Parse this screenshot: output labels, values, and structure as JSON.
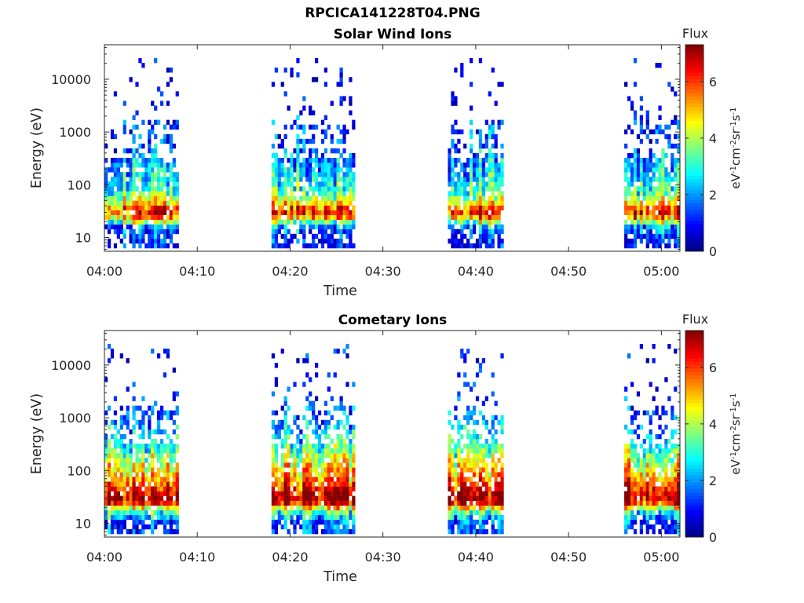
{
  "figure_title": "RPCICA141228T04.PNG",
  "colors": {
    "axis": "#262626",
    "background": "#ffffff"
  },
  "chart_data": [
    {
      "type": "heatmap",
      "title": "Solar Wind Ions",
      "xlabel": "Time",
      "ylabel": "Energy (eV)",
      "y_scale": "log",
      "xlim": [
        "04:00",
        "05:02"
      ],
      "ylim": [
        5.5,
        45000
      ],
      "x_ticks": [
        "04:00",
        "04:10",
        "04:20",
        "04:30",
        "04:40",
        "04:50",
        "05:00"
      ],
      "y_ticks": [
        "10",
        "100",
        "1000",
        "10000"
      ],
      "colorbar": {
        "label": "Flux",
        "units": "eV-1cm-2sr-1s-1",
        "range": [
          0,
          7.3
        ],
        "ticks": [
          "0",
          "2",
          "4",
          "6"
        ],
        "colormap": "jet"
      },
      "grid": false,
      "active_intervals": [
        [
          "04:00",
          "04:08"
        ],
        [
          "04:18",
          "04:27"
        ],
        [
          "04:37",
          "04:43"
        ],
        [
          "04:56",
          "05:02"
        ]
      ],
      "profile": [
        {
          "energy": 10,
          "flux": 0.8
        },
        {
          "energy": 16,
          "flux": 2.0
        },
        {
          "energy": 25,
          "flux": 5.5
        },
        {
          "energy": 32,
          "flux": 6.4
        },
        {
          "energy": 45,
          "flux": 4.8
        },
        {
          "energy": 70,
          "flux": 3.3
        },
        {
          "energy": 130,
          "flux": 2.6
        },
        {
          "energy": 300,
          "flux": 1.9
        },
        {
          "energy": 800,
          "flux": 1.2
        },
        {
          "energy": 3000,
          "flux": 0.6
        },
        {
          "energy": 12000,
          "flux": 0.3
        }
      ]
    },
    {
      "type": "heatmap",
      "title": "Cometary Ions",
      "xlabel": "Time",
      "ylabel": "Energy (eV)",
      "y_scale": "log",
      "xlim": [
        "04:00",
        "05:02"
      ],
      "ylim": [
        5.5,
        45000
      ],
      "x_ticks": [
        "04:00",
        "04:10",
        "04:20",
        "04:30",
        "04:40",
        "04:50",
        "05:00"
      ],
      "y_ticks": [
        "10",
        "100",
        "1000",
        "10000"
      ],
      "colorbar": {
        "label": "Flux",
        "units": "eV-1cm-2sr-1s-1",
        "range": [
          0,
          7.3
        ],
        "ticks": [
          "0",
          "2",
          "4",
          "6"
        ],
        "colormap": "jet"
      },
      "grid": false,
      "active_intervals": [
        [
          "04:00",
          "04:08"
        ],
        [
          "04:18",
          "04:27"
        ],
        [
          "04:37",
          "04:43"
        ],
        [
          "04:56",
          "05:02"
        ]
      ],
      "profile": [
        {
          "energy": 10,
          "flux": 1.0
        },
        {
          "energy": 16,
          "flux": 3.0
        },
        {
          "energy": 25,
          "flux": 6.5
        },
        {
          "energy": 32,
          "flux": 7.0
        },
        {
          "energy": 45,
          "flux": 6.2
        },
        {
          "energy": 70,
          "flux": 5.3
        },
        {
          "energy": 130,
          "flux": 4.4
        },
        {
          "energy": 300,
          "flux": 3.0
        },
        {
          "energy": 800,
          "flux": 1.8
        },
        {
          "energy": 3000,
          "flux": 0.8
        },
        {
          "energy": 12000,
          "flux": 0.3
        }
      ]
    }
  ]
}
